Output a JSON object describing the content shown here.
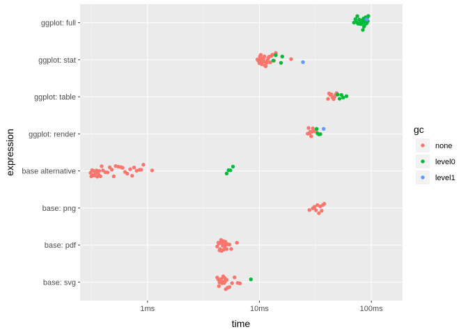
{
  "chart_data": {
    "type": "scatter",
    "subtype": "beeswarm",
    "xlabel": "time",
    "ylabel": "expression",
    "x_scale": "log10",
    "x_unit": "seconds",
    "xlim": [
      0.00025,
      0.19
    ],
    "x_ticks": [
      {
        "value": 0.001,
        "label": "1ms"
      },
      {
        "value": 0.01,
        "label": "10ms"
      },
      {
        "value": 0.1,
        "label": "100ms"
      }
    ],
    "categories": [
      "ggplot: full",
      "ggplot: stat",
      "ggplot: table",
      "ggplot: render",
      "base alternative",
      "base: png",
      "base: pdf",
      "base: svg"
    ],
    "legend": {
      "title": "gc",
      "position": "right",
      "entries": [
        {
          "label": "none",
          "color": "#F8766D"
        },
        {
          "label": "level0",
          "color": "#00BA38"
        },
        {
          "label": "level1",
          "color": "#619CFF"
        }
      ]
    },
    "series": [
      {
        "category": "ggplot: full",
        "gc": "level0",
        "times_ms": [
          70,
          72,
          74,
          75,
          76,
          78,
          79,
          80,
          81,
          82,
          83,
          84,
          85,
          86,
          87,
          88,
          89,
          90,
          91,
          92,
          93,
          94
        ]
      },
      {
        "category": "ggplot: full",
        "gc": "level1",
        "times_ms": [
          91
        ]
      },
      {
        "category": "ggplot: stat",
        "gc": "none",
        "times_ms": [
          9.6,
          9.8,
          10,
          10.1,
          10.2,
          10.3,
          10.4,
          10.5,
          10.6,
          10.7,
          10.8,
          10.9,
          11,
          11.1,
          11.2,
          11.4,
          11.6,
          11.8,
          12,
          12.2,
          12.5,
          12.8,
          13.1,
          13.5,
          14,
          19.2
        ]
      },
      {
        "category": "ggplot: stat",
        "gc": "level0",
        "times_ms": [
          13.3,
          14,
          15.6,
          16
        ]
      },
      {
        "category": "ggplot: stat",
        "gc": "level1",
        "times_ms": [
          24.5
        ]
      },
      {
        "category": "ggplot: table",
        "gc": "none",
        "times_ms": [
          41,
          42,
          43,
          44,
          45,
          46,
          47,
          48,
          49
        ]
      },
      {
        "category": "ggplot: table",
        "gc": "level0",
        "times_ms": [
          50,
          52,
          54,
          56,
          60
        ]
      },
      {
        "category": "ggplot: render",
        "gc": "none",
        "times_ms": [
          27,
          27.5,
          28,
          28.5,
          29,
          29.5,
          30,
          31,
          32
        ]
      },
      {
        "category": "ggplot: render",
        "gc": "level0",
        "times_ms": [
          32.5,
          33,
          34,
          35
        ]
      },
      {
        "category": "ggplot: render",
        "gc": "level1",
        "times_ms": [
          37.5
        ]
      },
      {
        "category": "base alternative",
        "gc": "none",
        "times_ms": [
          0.31,
          0.315,
          0.32,
          0.325,
          0.33,
          0.335,
          0.34,
          0.345,
          0.35,
          0.355,
          0.36,
          0.365,
          0.37,
          0.38,
          0.39,
          0.4,
          0.42,
          0.44,
          0.46,
          0.48,
          0.5,
          0.52,
          0.55,
          0.58,
          0.6,
          0.63,
          0.66,
          0.7,
          0.73,
          0.76,
          0.8,
          0.85,
          0.88,
          0.92,
          1.1
        ]
      },
      {
        "category": "base alternative",
        "gc": "level0",
        "times_ms": [
          5.1,
          5.3,
          5.5,
          5.8
        ]
      },
      {
        "category": "base: png",
        "gc": "none",
        "times_ms": [
          28,
          30,
          31,
          32,
          33,
          34,
          35,
          36,
          37,
          38
        ]
      },
      {
        "category": "base: pdf",
        "gc": "none",
        "times_ms": [
          4.2,
          4.3,
          4.35,
          4.4,
          4.45,
          4.5,
          4.55,
          4.6,
          4.65,
          4.7,
          4.75,
          4.8,
          4.85,
          4.9,
          4.95,
          5,
          5.1,
          5.2,
          5.4,
          5.6,
          6.3
        ]
      },
      {
        "category": "base: svg",
        "gc": "none",
        "times_ms": [
          4.2,
          4.3,
          4.35,
          4.4,
          4.45,
          4.5,
          4.55,
          4.6,
          4.65,
          4.7,
          4.75,
          4.8,
          4.85,
          4.9,
          4.95,
          5,
          5.1,
          5.2,
          5.4,
          5.7,
          6,
          6.4,
          6.7
        ]
      },
      {
        "category": "base: svg",
        "gc": "level0",
        "times_ms": [
          8.4
        ]
      }
    ]
  }
}
